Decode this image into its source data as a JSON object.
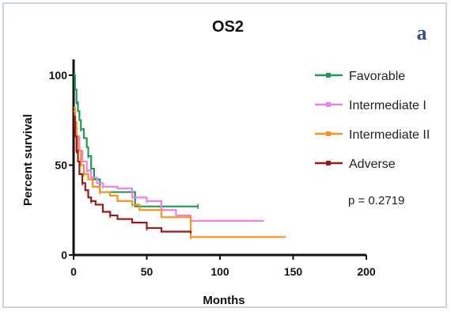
{
  "chart_data": {
    "type": "line",
    "title": "OS2",
    "panel_label": "a",
    "xlabel": "Months",
    "ylabel": "Percent survival",
    "xlim": [
      0,
      200
    ],
    "ylim": [
      0,
      100
    ],
    "xticks": [
      0,
      50,
      100,
      150,
      200
    ],
    "yticks": [
      0,
      50,
      100
    ],
    "grid": false,
    "legend_position": "right",
    "annotation": "p = 0.2719",
    "series": [
      {
        "name": "Favorable",
        "color": "#1f9a55",
        "x": [
          0,
          1,
          2,
          3,
          4,
          5,
          7,
          9,
          10,
          12,
          14,
          18,
          40,
          42,
          85
        ],
        "y": [
          100,
          92,
          85,
          80,
          75,
          70,
          65,
          60,
          55,
          48,
          42,
          35,
          35,
          27,
          27
        ]
      },
      {
        "name": "Intermediate I",
        "color": "#f07ef0",
        "x": [
          0,
          1,
          2,
          4,
          6,
          9,
          12,
          16,
          20,
          30,
          40,
          50,
          60,
          70,
          80,
          130
        ],
        "y": [
          80,
          72,
          66,
          58,
          52,
          47,
          43,
          40,
          38,
          37,
          32,
          30,
          25,
          22,
          19,
          19
        ]
      },
      {
        "name": "Intermediate II",
        "color": "#f7931e",
        "x": [
          0,
          1,
          2,
          3,
          5,
          7,
          10,
          13,
          18,
          25,
          30,
          40,
          45,
          60,
          80,
          145
        ],
        "y": [
          82,
          74,
          66,
          58,
          50,
          45,
          42,
          38,
          35,
          33,
          30,
          28,
          25,
          21,
          10,
          10
        ]
      },
      {
        "name": "Adverse",
        "color": "#9b1b1b",
        "x": [
          0,
          1,
          2,
          3,
          4,
          6,
          8,
          10,
          12,
          15,
          20,
          25,
          30,
          40,
          50,
          60,
          80
        ],
        "y": [
          77,
          66,
          58,
          52,
          45,
          40,
          36,
          32,
          30,
          28,
          24,
          22,
          20,
          18,
          15,
          13,
          12
        ]
      }
    ]
  }
}
